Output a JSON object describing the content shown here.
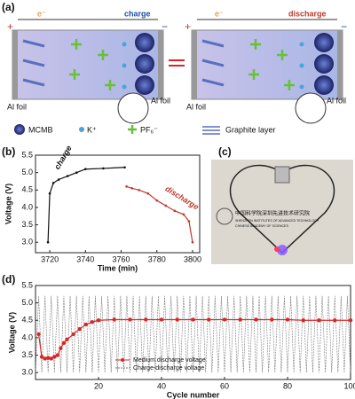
{
  "schematic": {
    "label": "(a)",
    "left_mode": "charge",
    "right_mode": "discharge",
    "electron": "e⁻",
    "plus": "+",
    "minus": "−",
    "foil": "Al foil",
    "legend": [
      "MCMB",
      "K⁺",
      "PF₆⁻",
      "Graphite layer"
    ]
  },
  "photo": {
    "label": "(c)",
    "institute_cn": "中国科学院深圳先进技术研究院",
    "institute_en_1": "SHENZHEN INSTITUTES OF ADVANCED TECHNOLOGY",
    "institute_en_2": "CHINESE ACADEMY OF SCIENCES"
  },
  "chart_data": [
    {
      "type": "line",
      "panel_label": "(b)",
      "xlabel": "Time (min)",
      "ylabel": "Voltage (V)",
      "annotations": [
        "charge",
        "discharge"
      ],
      "xlim": [
        3712,
        3804
      ],
      "xticks": [
        3720,
        3740,
        3760,
        3780,
        3800
      ],
      "ylim": [
        2.7,
        5.5
      ],
      "yticks": [
        {
          "value": 3,
          "label": "3.0"
        },
        3.5,
        {
          "value": 4,
          "label": "4.0"
        },
        4.5,
        {
          "value": 5,
          "label": "5.0"
        },
        5.5
      ],
      "series": [
        {
          "color": "#111111",
          "x": [
            3719,
            3720,
            3722,
            3725,
            3730,
            3735,
            3740,
            3750,
            3762
          ],
          "values": [
            3.0,
            4.4,
            4.7,
            4.8,
            4.9,
            5.0,
            5.1,
            5.12,
            5.15
          ]
        },
        {
          "color": "#c0392b",
          "x": [
            3763,
            3766,
            3770,
            3775,
            3780,
            3785,
            3790,
            3795,
            3798,
            3800
          ],
          "values": [
            4.6,
            4.55,
            4.5,
            4.4,
            4.2,
            4.05,
            3.9,
            3.8,
            3.6,
            3.0
          ]
        }
      ]
    },
    {
      "type": "line",
      "panel_label": "(d)",
      "xlabel": "Cycle number",
      "ylabel": "Voltage (V)",
      "legend": "lower left",
      "xlim": [
        0,
        100
      ],
      "xticks": [
        20,
        40,
        60,
        80,
        100
      ],
      "ylim": [
        2.8,
        5.5
      ],
      "yticks": [
        {
          "value": 3,
          "label": "3.0"
        },
        3.5,
        {
          "value": 4,
          "label": "4.0"
        },
        4.5,
        {
          "value": 5,
          "label": "5.0"
        },
        5.5
      ],
      "series": [
        {
          "name": "Charge-discharge voltage",
          "color": "#777777",
          "dashed": true,
          "x": [
            0,
            1,
            2,
            3,
            4,
            5,
            6,
            7,
            8,
            9,
            10,
            11,
            12,
            13,
            14,
            15,
            16,
            17,
            18,
            19,
            20,
            21,
            22,
            23,
            24,
            25,
            26,
            27,
            28,
            29,
            30,
            31,
            32,
            33,
            34,
            35,
            36,
            37,
            38,
            39,
            40,
            41,
            42,
            43,
            44,
            45,
            46,
            47,
            48,
            49,
            50,
            51,
            52,
            53,
            54,
            55,
            56,
            57,
            58,
            59,
            60,
            61,
            62,
            63,
            64,
            65,
            66,
            67,
            68,
            69,
            70,
            71,
            72,
            73,
            74,
            75,
            76,
            77,
            78,
            79,
            80,
            81,
            82,
            83,
            84,
            85,
            86,
            87,
            88,
            89,
            90,
            91,
            92,
            93,
            94,
            95,
            96,
            97,
            98,
            99,
            100
          ],
          "values": [
            3.0,
            5.2,
            3.0,
            5.2,
            3.0,
            5.2,
            3.0,
            5.2,
            3.0,
            5.2,
            3.0,
            5.2,
            3.0,
            5.2,
            3.0,
            5.2,
            3.0,
            5.2,
            3.0,
            5.2,
            3.0,
            5.2,
            3.0,
            5.2,
            3.0,
            5.2,
            3.0,
            5.2,
            3.0,
            5.2,
            3.0,
            5.2,
            3.0,
            5.2,
            3.0,
            5.2,
            3.0,
            5.2,
            3.0,
            5.2,
            3.0,
            5.2,
            3.0,
            5.2,
            3.0,
            5.2,
            3.0,
            5.2,
            3.0,
            5.2,
            3.0,
            5.2,
            3.0,
            5.2,
            3.0,
            5.2,
            3.0,
            5.2,
            3.0,
            5.2,
            3.0,
            5.2,
            3.0,
            5.2,
            3.0,
            5.2,
            3.0,
            5.2,
            3.0,
            5.2,
            3.0,
            5.2,
            3.0,
            5.2,
            3.0,
            5.2,
            3.0,
            5.2,
            3.0,
            5.2,
            3.0,
            5.2,
            3.0,
            5.2,
            3.0,
            5.2,
            3.0,
            5.2,
            3.0,
            5.2,
            3.0,
            5.2,
            3.0,
            5.2,
            3.0,
            5.2,
            3.0,
            5.2,
            3.0,
            5.2,
            3.0
          ]
        },
        {
          "name": "Medium discharge voltage",
          "color": "#d62728",
          "markers": true,
          "x": [
            1,
            2,
            3,
            4,
            5,
            6,
            7,
            8,
            9,
            10,
            12,
            14,
            16,
            18,
            20,
            25,
            30,
            35,
            40,
            45,
            50,
            55,
            60,
            65,
            70,
            75,
            80,
            85,
            90,
            95,
            100
          ],
          "values": [
            4.1,
            3.45,
            3.4,
            3.42,
            3.4,
            3.45,
            3.5,
            3.7,
            3.85,
            3.95,
            4.1,
            4.25,
            4.38,
            4.45,
            4.5,
            4.52,
            4.52,
            4.52,
            4.52,
            4.52,
            4.52,
            4.52,
            4.52,
            4.52,
            4.52,
            4.52,
            4.52,
            4.5,
            4.5,
            4.5,
            4.5
          ]
        }
      ]
    }
  ]
}
